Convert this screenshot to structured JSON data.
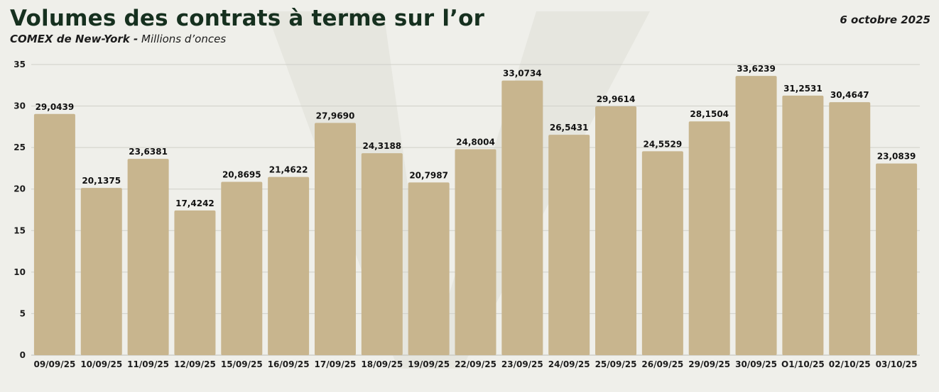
{
  "header": {
    "title": "Volumes des contrats à terme sur l’or",
    "subtitle_bold": "COMEX de New-York -",
    "subtitle_italic": "Millions d’onces",
    "date": "6 octobre 2025"
  },
  "colors": {
    "bar": "#c8b58e",
    "grid": "#cfcfc8",
    "background": "#efefea",
    "title": "#16301f",
    "watermark": "#e3e3dc"
  },
  "chart_data": {
    "type": "bar",
    "title": "Volumes des contrats à terme sur l’or",
    "subtitle": "COMEX de New-York - Millions d’onces",
    "categories": [
      "09/09/25",
      "10/09/25",
      "11/09/25",
      "12/09/25",
      "15/09/25",
      "16/09/25",
      "17/09/25",
      "18/09/25",
      "19/09/25",
      "22/09/25",
      "23/09/25",
      "24/09/25",
      "25/09/25",
      "26/09/25",
      "29/09/25",
      "30/09/25",
      "O1/10/25",
      "02/10/25",
      "03/10/25"
    ],
    "values": [
      29.0439,
      20.1375,
      23.6381,
      17.4242,
      20.8695,
      21.4622,
      27.969,
      24.3188,
      20.7987,
      24.8004,
      33.0734,
      26.5431,
      29.9614,
      24.5529,
      28.1504,
      33.6239,
      31.2531,
      30.4647,
      23.0839
    ],
    "value_labels": [
      "29,0439",
      "20,1375",
      "23,6381",
      "17,4242",
      "20,8695",
      "21,4622",
      "27,9690",
      "24,3188",
      "20,7987",
      "24,8004",
      "33,0734",
      "26,5431",
      "29,9614",
      "24,5529",
      "28,1504",
      "33,6239",
      "31,2531",
      "30,4647",
      "23,0839"
    ],
    "y_ticks": [
      "0",
      "5",
      "10",
      "15",
      "20",
      "25",
      "30",
      "35"
    ],
    "ylim": [
      0,
      35
    ],
    "grid": true,
    "xlabel": "",
    "ylabel": ""
  }
}
